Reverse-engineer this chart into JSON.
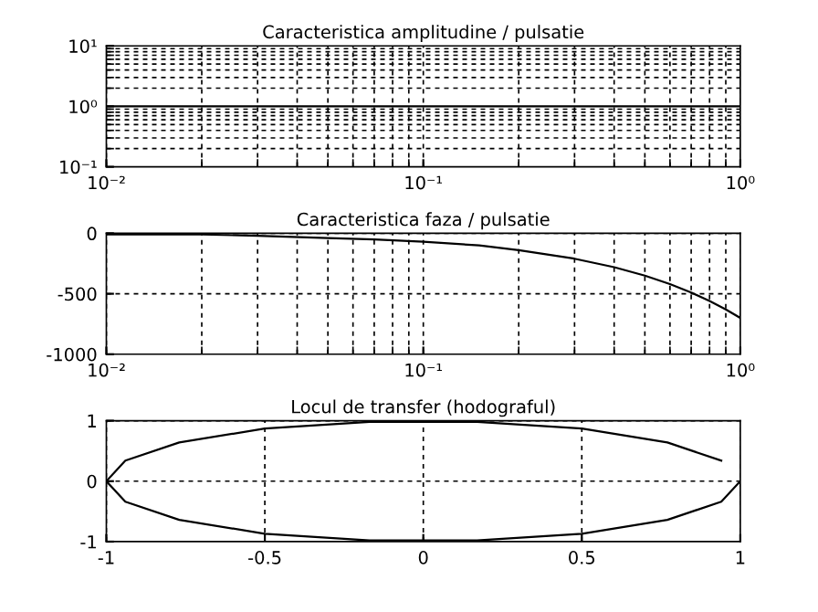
{
  "chart_data": [
    {
      "type": "line",
      "title": "Caracteristica amplitudine / pulsatie",
      "log": "xy",
      "line_style": "solid",
      "grid": true,
      "color": "#000000",
      "x": [
        0.01,
        1
      ],
      "values": [
        1,
        1
      ],
      "xlim": [
        0.01,
        1
      ],
      "ylim": [
        0.1,
        10
      ],
      "xticks": [
        {
          "value": 0.01,
          "label": "10⁻²"
        },
        {
          "value": 0.1,
          "label": "10⁻¹"
        },
        {
          "value": 1,
          "label": "10⁰"
        }
      ],
      "yticks": [
        {
          "value": 0.1,
          "label": "10⁻¹"
        },
        {
          "value": 1,
          "label": "10⁰"
        },
        {
          "value": 10,
          "label": "10¹"
        }
      ]
    },
    {
      "type": "line",
      "title": "Caracteristica faza / pulsatie",
      "log": "x",
      "grid": true,
      "color": "#000000",
      "x": [
        0.01,
        0.02,
        0.03,
        0.05,
        0.07,
        0.1,
        0.15,
        0.2,
        0.3,
        0.4,
        0.5,
        0.6,
        0.7,
        0.8,
        0.9,
        1
      ],
      "values": [
        -10,
        -10,
        -20,
        -40,
        -50,
        -70,
        -100,
        -140,
        -210,
        -280,
        -350,
        -420,
        -490,
        -560,
        -630,
        -700
      ],
      "xlim": [
        0.01,
        1
      ],
      "ylim": [
        -1000,
        0
      ],
      "xticks": [
        {
          "value": 0.01,
          "label": "10⁻²"
        },
        {
          "value": 0.1,
          "label": "10⁻¹"
        },
        {
          "value": 1,
          "label": "10⁰"
        }
      ],
      "yticks": [
        -1000,
        -500,
        0
      ]
    },
    {
      "type": "line",
      "title": "Locul de transfer (hodograful)",
      "grid": true,
      "color": "#000000",
      "x": [
        1,
        0.94,
        0.77,
        0.5,
        0.17,
        -0.17,
        -0.5,
        -0.77,
        -0.94,
        -1,
        -0.94,
        -0.77,
        -0.5,
        -0.17,
        0.17,
        0.5,
        0.77,
        0.94
      ],
      "values": [
        0,
        -0.34,
        -0.64,
        -0.87,
        -0.98,
        -0.98,
        -0.87,
        -0.64,
        -0.34,
        0,
        0.34,
        0.64,
        0.87,
        0.98,
        0.98,
        0.87,
        0.64,
        0.34
      ],
      "xlim": [
        -1,
        1
      ],
      "ylim": [
        -1,
        1
      ],
      "xticks": [
        -1,
        -0.5,
        0,
        0.5,
        1
      ],
      "yticks": [
        -1,
        0,
        1
      ]
    }
  ]
}
